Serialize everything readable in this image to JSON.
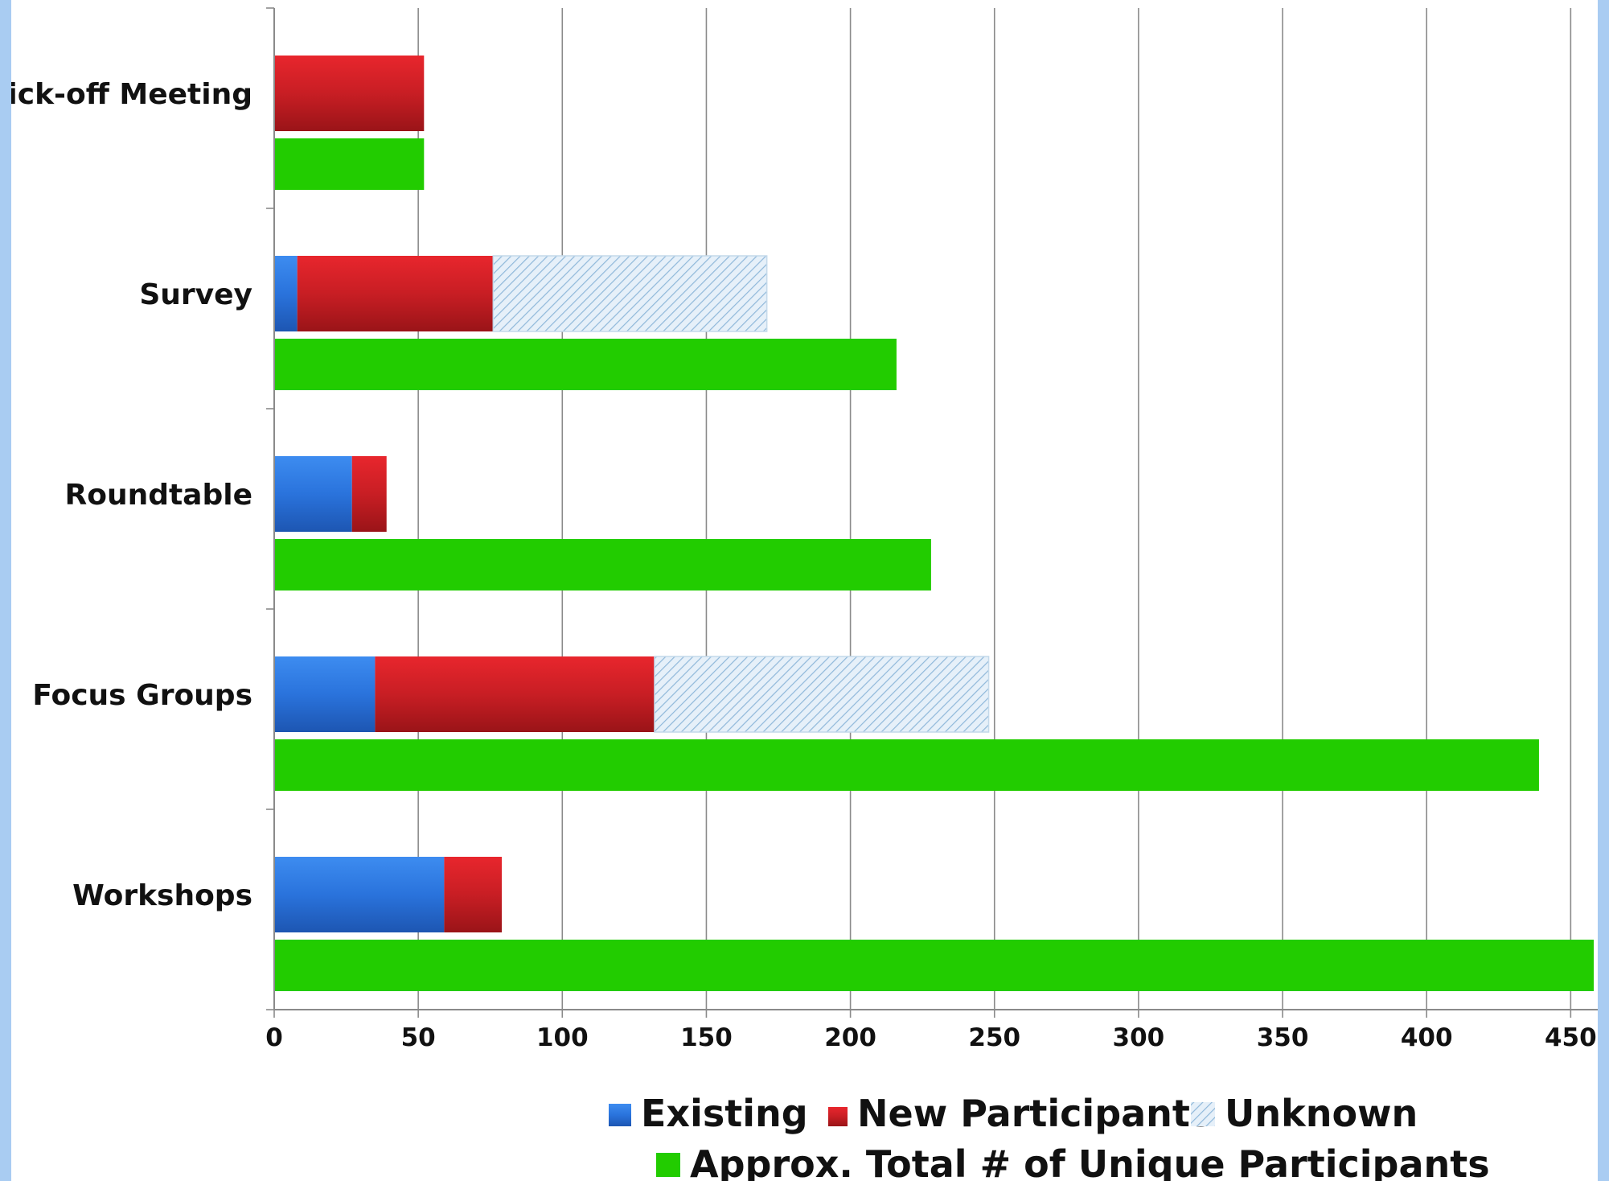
{
  "chart_data": {
    "type": "bar",
    "orientation": "horizontal",
    "categories": [
      "Kick-off Meeting",
      "Survey",
      "Roundtable",
      "Focus Groups",
      "Workshops"
    ],
    "stacked_series": [
      {
        "name": "Existing",
        "values": [
          0,
          8,
          27,
          35,
          59
        ],
        "color": "#2f7de6"
      },
      {
        "name": "New Participants",
        "values": [
          52,
          68,
          12,
          97,
          20
        ],
        "color": "#d42027"
      },
      {
        "name": "Unknown",
        "values": [
          0,
          95,
          0,
          116,
          0
        ],
        "color": "#cfe3f3",
        "pattern": "diagonal-hatch"
      }
    ],
    "total_series": {
      "name": "Approx. Total # of Unique Participants",
      "values": [
        52,
        216,
        228,
        439,
        458
      ],
      "color": "#22cc00"
    },
    "x_ticks": [
      "0",
      "50",
      "100",
      "150",
      "200",
      "250",
      "300",
      "350",
      "400",
      "450"
    ],
    "xlim": [
      0,
      460
    ],
    "grid": "vertical",
    "legend_position": "bottom",
    "legend": [
      {
        "label": "Existing",
        "color": "#2f7de6"
      },
      {
        "label": "New Participants",
        "color": "#d42027"
      },
      {
        "label": "Unknown",
        "color": "#cfe3f3"
      },
      {
        "label": "Approx. Total # of Unique Participants",
        "color": "#22cc00"
      }
    ]
  }
}
